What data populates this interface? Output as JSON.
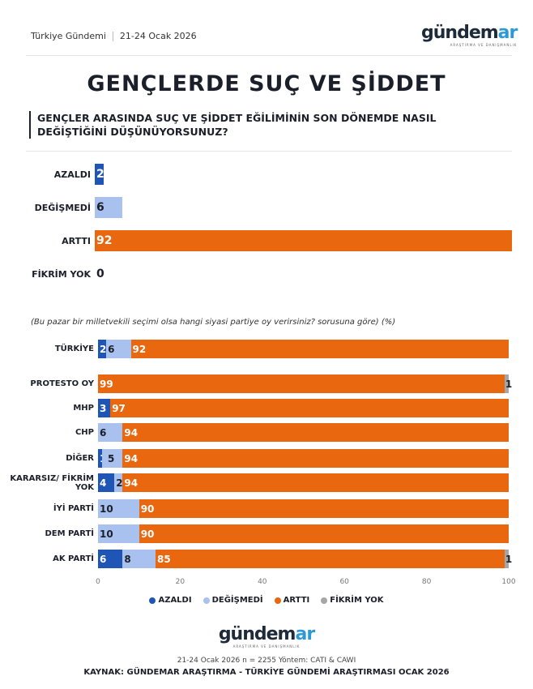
{
  "header": {
    "left": "Türkiye Gündemi",
    "date": "21-24 Ocak 2026",
    "logo_main": "gündem",
    "logo_accent": "ar",
    "logo_sub": "ARAŞTIRMA VE DANIŞMANLIK"
  },
  "title": "GENÇLERDE SUÇ VE ŞİDDET",
  "question": "GENÇLER ARASINDA SUÇ VE ŞİDDET EĞİLİMİNİN SON DÖNEMDE NASIL DEĞİŞTİĞİNİ DÜŞÜNÜYORSUNUZ?",
  "colors": {
    "azaldi": "#1f56b5",
    "degismedi": "#a9c1ef",
    "artti": "#e8670f",
    "fikrim_yok": "#a6a6a6"
  },
  "chart_data": [
    {
      "type": "bar",
      "orientation": "horizontal",
      "categories": [
        "AZALDI",
        "DEĞİŞMEDİ",
        "ARTTI",
        "FİKRİM YOK"
      ],
      "values": [
        2,
        6,
        92,
        0
      ]
    },
    {
      "type": "bar",
      "orientation": "horizontal",
      "stacked": true,
      "note": "(Bu pazar bir milletvekili seçimi olsa hangi siyasi partiye oy verirsiniz? sorusuna göre) (%)",
      "categories": [
        "TÜRKİYE",
        "PROTESTO OY",
        "MHP",
        "CHP",
        "DİĞER",
        "KARARSIZ/ FİKRİM YOK",
        "İYİ PARTİ",
        "DEM PARTİ",
        "AK PARTİ"
      ],
      "series": [
        {
          "name": "AZALDI",
          "values": [
            2,
            0,
            3,
            0,
            1,
            4,
            0,
            0,
            6
          ]
        },
        {
          "name": "DEĞİŞMEDİ",
          "values": [
            6,
            0,
            0,
            6,
            5,
            2,
            10,
            10,
            8
          ]
        },
        {
          "name": "ARTTI",
          "values": [
            92,
            99,
            97,
            94,
            94,
            94,
            90,
            90,
            85
          ]
        },
        {
          "name": "FİKRİM YOK",
          "values": [
            0,
            1,
            0,
            0,
            0,
            0,
            0,
            0,
            1
          ]
        }
      ],
      "xlim": [
        0,
        100
      ],
      "xticks": [
        "0",
        "20",
        "40",
        "60",
        "80",
        "100"
      ],
      "legend": "bottom"
    }
  ],
  "footer": {
    "logo_main": "gündem",
    "logo_accent": "ar",
    "logo_sub": "ARAŞTIRMA VE DANIŞMANLIK",
    "meta": "21-24 Ocak 2026 n = 2255 Yöntem: CATI & CAWI",
    "source": "KAYNAK: GÜNDEMAR ARAŞTIRMA - TÜRKİYE GÜNDEMİ ARAŞTIRMASI OCAK 2026"
  }
}
